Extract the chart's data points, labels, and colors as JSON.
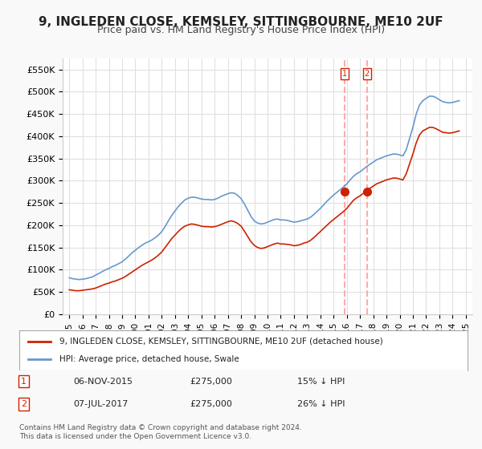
{
  "title": "9, INGLEDEN CLOSE, KEMSLEY, SITTINGBOURNE, ME10 2UF",
  "subtitle": "Price paid vs. HM Land Registry's House Price Index (HPI)",
  "title_fontsize": 11,
  "subtitle_fontsize": 9,
  "ylabel_ticks": [
    "£0",
    "£50K",
    "£100K",
    "£150K",
    "£200K",
    "£250K",
    "£300K",
    "£350K",
    "£400K",
    "£450K",
    "£500K",
    "£550K"
  ],
  "ytick_values": [
    0,
    50000,
    100000,
    150000,
    200000,
    250000,
    300000,
    350000,
    400000,
    450000,
    500000,
    550000
  ],
  "ylim": [
    0,
    575000
  ],
  "xlim_start": 1994.5,
  "xlim_end": 2025.5,
  "bg_color": "#f9f9f9",
  "plot_bg_color": "#ffffff",
  "grid_color": "#e0e0e0",
  "hpi_color": "#6699cc",
  "price_color": "#cc2200",
  "marker_color": "#cc2200",
  "vline_color": "#ffaaaa",
  "transaction1_date": 2015.85,
  "transaction2_date": 2017.52,
  "transaction1_price": 275000,
  "transaction2_price": 275000,
  "legend_label1": "9, INGLEDEN CLOSE, KEMSLEY, SITTINGBOURNE, ME10 2UF (detached house)",
  "legend_label2": "HPI: Average price, detached house, Swale",
  "annotation1_num": "1",
  "annotation1_date": "06-NOV-2015",
  "annotation1_price": "£275,000",
  "annotation1_hpi": "15% ↓ HPI",
  "annotation2_num": "2",
  "annotation2_date": "07-JUL-2017",
  "annotation2_price": "£275,000",
  "annotation2_hpi": "26% ↓ HPI",
  "footer": "Contains HM Land Registry data © Crown copyright and database right 2024.\nThis data is licensed under the Open Government Licence v3.0.",
  "hpi_x": [
    1995.0,
    1995.25,
    1995.5,
    1995.75,
    1996.0,
    1996.25,
    1996.5,
    1996.75,
    1997.0,
    1997.25,
    1997.5,
    1997.75,
    1998.0,
    1998.25,
    1998.5,
    1998.75,
    1999.0,
    1999.25,
    1999.5,
    1999.75,
    2000.0,
    2000.25,
    2000.5,
    2000.75,
    2001.0,
    2001.25,
    2001.5,
    2001.75,
    2002.0,
    2002.25,
    2002.5,
    2002.75,
    2003.0,
    2003.25,
    2003.5,
    2003.75,
    2004.0,
    2004.25,
    2004.5,
    2004.75,
    2005.0,
    2005.25,
    2005.5,
    2005.75,
    2006.0,
    2006.25,
    2006.5,
    2006.75,
    2007.0,
    2007.25,
    2007.5,
    2007.75,
    2008.0,
    2008.25,
    2008.5,
    2008.75,
    2009.0,
    2009.25,
    2009.5,
    2009.75,
    2010.0,
    2010.25,
    2010.5,
    2010.75,
    2011.0,
    2011.25,
    2011.5,
    2011.75,
    2012.0,
    2012.25,
    2012.5,
    2012.75,
    2013.0,
    2013.25,
    2013.5,
    2013.75,
    2014.0,
    2014.25,
    2014.5,
    2014.75,
    2015.0,
    2015.25,
    2015.5,
    2015.75,
    2016.0,
    2016.25,
    2016.5,
    2016.75,
    2017.0,
    2017.25,
    2017.5,
    2017.75,
    2018.0,
    2018.25,
    2018.5,
    2018.75,
    2019.0,
    2019.25,
    2019.5,
    2019.75,
    2020.0,
    2020.25,
    2020.5,
    2020.75,
    2021.0,
    2021.25,
    2021.5,
    2021.75,
    2022.0,
    2022.25,
    2022.5,
    2022.75,
    2023.0,
    2023.25,
    2023.5,
    2023.75,
    2024.0,
    2024.25,
    2024.5
  ],
  "hpi_y": [
    82000,
    80000,
    79000,
    78000,
    79000,
    80000,
    82000,
    84000,
    88000,
    92000,
    96000,
    100000,
    103000,
    107000,
    110000,
    114000,
    118000,
    124000,
    131000,
    138000,
    144000,
    150000,
    155000,
    160000,
    163000,
    167000,
    172000,
    178000,
    186000,
    197000,
    210000,
    222000,
    232000,
    242000,
    250000,
    257000,
    261000,
    263000,
    263000,
    261000,
    259000,
    258000,
    258000,
    257000,
    258000,
    261000,
    265000,
    268000,
    271000,
    273000,
    272000,
    267000,
    260000,
    248000,
    234000,
    220000,
    210000,
    205000,
    203000,
    204000,
    207000,
    210000,
    213000,
    214000,
    212000,
    212000,
    211000,
    209000,
    207000,
    208000,
    210000,
    212000,
    214000,
    218000,
    224000,
    231000,
    238000,
    246000,
    254000,
    261000,
    268000,
    274000,
    280000,
    286000,
    293000,
    302000,
    310000,
    316000,
    320000,
    326000,
    332000,
    337000,
    342000,
    347000,
    350000,
    353000,
    356000,
    358000,
    360000,
    360000,
    358000,
    356000,
    370000,
    395000,
    420000,
    450000,
    470000,
    480000,
    485000,
    490000,
    490000,
    487000,
    482000,
    478000,
    476000,
    475000,
    476000,
    478000,
    480000
  ],
  "price_x": [
    1995.0,
    1995.25,
    1995.5,
    1995.75,
    1996.0,
    1996.25,
    1996.5,
    1996.75,
    1997.0,
    1997.25,
    1997.5,
    1997.75,
    1998.0,
    1998.25,
    1998.5,
    1998.75,
    1999.0,
    1999.25,
    1999.5,
    1999.75,
    2000.0,
    2000.25,
    2000.5,
    2000.75,
    2001.0,
    2001.25,
    2001.5,
    2001.75,
    2002.0,
    2002.25,
    2002.5,
    2002.75,
    2003.0,
    2003.25,
    2003.5,
    2003.75,
    2004.0,
    2004.25,
    2004.5,
    2004.75,
    2005.0,
    2005.25,
    2005.5,
    2005.75,
    2006.0,
    2006.25,
    2006.5,
    2006.75,
    2007.0,
    2007.25,
    2007.5,
    2007.75,
    2008.0,
    2008.25,
    2008.5,
    2008.75,
    2009.0,
    2009.25,
    2009.5,
    2009.75,
    2010.0,
    2010.25,
    2010.5,
    2010.75,
    2011.0,
    2011.25,
    2011.5,
    2011.75,
    2012.0,
    2012.25,
    2012.5,
    2012.75,
    2013.0,
    2013.25,
    2013.5,
    2013.75,
    2014.0,
    2014.25,
    2014.5,
    2014.75,
    2015.0,
    2015.25,
    2015.5,
    2015.75,
    2016.0,
    2016.25,
    2016.5,
    2016.75,
    2017.0,
    2017.25,
    2017.5,
    2017.75,
    2018.0,
    2018.25,
    2018.5,
    2018.75,
    2019.0,
    2019.25,
    2019.5,
    2019.75,
    2020.0,
    2020.25,
    2020.5,
    2020.75,
    2021.0,
    2021.25,
    2021.5,
    2021.75,
    2022.0,
    2022.25,
    2022.5,
    2022.75,
    2023.0,
    2023.25,
    2023.5,
    2023.75,
    2024.0,
    2024.25,
    2024.5
  ],
  "price_y": [
    55000,
    54000,
    53000,
    53000,
    54000,
    55000,
    56000,
    57000,
    59000,
    62000,
    65000,
    68000,
    70000,
    73000,
    75000,
    78000,
    81000,
    85000,
    90000,
    95000,
    100000,
    105000,
    110000,
    114000,
    118000,
    122000,
    127000,
    133000,
    140000,
    150000,
    160000,
    170000,
    178000,
    186000,
    193000,
    198000,
    201000,
    203000,
    202000,
    200000,
    198000,
    197000,
    197000,
    196000,
    197000,
    199000,
    202000,
    205000,
    208000,
    210000,
    208000,
    204000,
    198000,
    187000,
    175000,
    163000,
    155000,
    150000,
    148000,
    149000,
    152000,
    155000,
    158000,
    160000,
    158000,
    158000,
    157000,
    156000,
    154000,
    155000,
    157000,
    160000,
    162000,
    166000,
    172000,
    179000,
    186000,
    193000,
    200000,
    207000,
    213000,
    219000,
    225000,
    231000,
    238000,
    247000,
    256000,
    262000,
    266000,
    272000,
    278000,
    283000,
    288000,
    293000,
    296000,
    299000,
    302000,
    304000,
    306000,
    306000,
    304000,
    302000,
    316000,
    338000,
    360000,
    385000,
    403000,
    412000,
    416000,
    420000,
    420000,
    417000,
    413000,
    409000,
    408000,
    407000,
    408000,
    410000,
    412000
  ]
}
